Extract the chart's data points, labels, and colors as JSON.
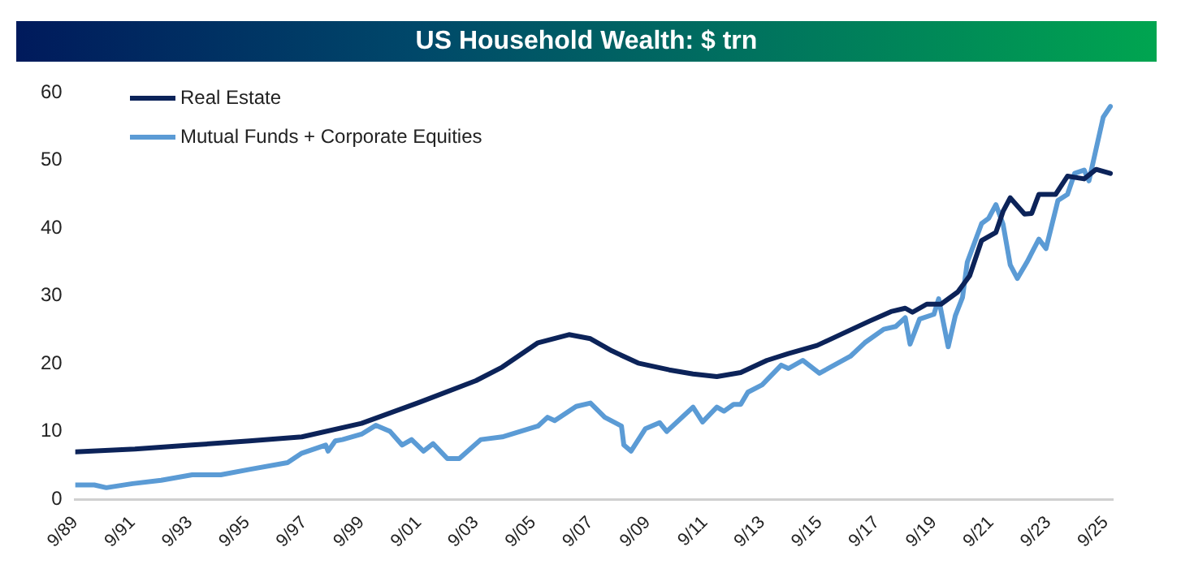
{
  "chart_data": {
    "type": "line",
    "title": "US Household Wealth: $ trn",
    "legend": "top left",
    "marker": "none",
    "xlim": [
      "1989-09",
      "2025-12"
    ],
    "ylim": [
      0,
      60
    ],
    "yticks": [
      0,
      10,
      20,
      30,
      40,
      50,
      60
    ],
    "xticks": [
      {
        "value": "1989-09",
        "label": "9/89"
      },
      {
        "value": "1991-09",
        "label": "9/91"
      },
      {
        "value": "1993-09",
        "label": "9/93"
      },
      {
        "value": "1995-09",
        "label": "9/95"
      },
      {
        "value": "1997-09",
        "label": "9/97"
      },
      {
        "value": "1999-09",
        "label": "9/99"
      },
      {
        "value": "2001-09",
        "label": "9/01"
      },
      {
        "value": "2003-09",
        "label": "9/03"
      },
      {
        "value": "2005-09",
        "label": "9/05"
      },
      {
        "value": "2007-09",
        "label": "9/07"
      },
      {
        "value": "2009-09",
        "label": "9/09"
      },
      {
        "value": "2011-09",
        "label": "9/11"
      },
      {
        "value": "2013-09",
        "label": "9/13"
      },
      {
        "value": "2015-09",
        "label": "9/15"
      },
      {
        "value": "2017-09",
        "label": "9/17"
      },
      {
        "value": "2019-09",
        "label": "9/19"
      },
      {
        "value": "2021-09",
        "label": "9/21"
      },
      {
        "value": "2023-09",
        "label": "9/23"
      },
      {
        "value": "2025-09",
        "label": "9/25"
      }
    ],
    "series": [
      {
        "name": "Real Estate",
        "color": "#0c2359",
        "x": [
          "1989-09",
          "1991-10",
          "1993-10",
          "1995-10",
          "1997-08",
          "1999-09",
          "2001-10",
          "2003-09",
          "2004-08",
          "2005-11",
          "2006-12",
          "2007-09",
          "2008-06",
          "2009-05",
          "2010-06",
          "2011-04",
          "2012-02",
          "2012-12",
          "2013-11",
          "2014-08",
          "2015-08",
          "2016-07",
          "2017-06",
          "2018-03",
          "2018-09",
          "2018-12",
          "2019-06",
          "2019-12",
          "2020-07",
          "2020-12",
          "2021-05",
          "2021-11",
          "2022-02",
          "2022-05",
          "2022-11",
          "2023-02",
          "2023-05",
          "2023-12",
          "2024-05",
          "2024-12",
          "2025-05",
          "2025-11"
        ],
        "values": [
          7.0,
          7.4,
          8.0,
          8.6,
          9.2,
          11.2,
          14.4,
          17.5,
          19.5,
          23.1,
          24.3,
          23.7,
          21.9,
          20.1,
          19.1,
          18.5,
          18.1,
          18.7,
          20.5,
          21.5,
          22.7,
          24.5,
          26.3,
          27.7,
          28.2,
          27.6,
          28.8,
          28.8,
          30.6,
          33.0,
          38.2,
          39.4,
          42.5,
          44.5,
          42.1,
          42.2,
          45.0,
          45.0,
          47.7,
          47.3,
          48.7,
          48.1
        ]
      },
      {
        "name": "Mutual Funds + Corporate Equities",
        "color": "#5b9bd5",
        "x": [
          "1989-09",
          "1990-05",
          "1990-10",
          "1991-09",
          "1992-09",
          "1993-10",
          "1994-10",
          "1995-10",
          "1997-02",
          "1997-08",
          "1998-06",
          "1998-07",
          "1998-10",
          "1999-01",
          "1999-09",
          "2000-03",
          "2000-09",
          "2001-02",
          "2001-06",
          "2001-11",
          "2002-03",
          "2002-09",
          "2003-02",
          "2003-11",
          "2004-08",
          "2005-11",
          "2006-03",
          "2006-06",
          "2007-03",
          "2007-09",
          "2008-03",
          "2008-10",
          "2008-11",
          "2009-02",
          "2009-08",
          "2010-02",
          "2010-05",
          "2011-04",
          "2011-08",
          "2012-02",
          "2012-05",
          "2012-09",
          "2012-12",
          "2013-03",
          "2013-09",
          "2014-05",
          "2014-08",
          "2015-02",
          "2015-09",
          "2016-10",
          "2017-04",
          "2017-12",
          "2018-05",
          "2018-09",
          "2018-11",
          "2019-03",
          "2019-09",
          "2019-11",
          "2020-03",
          "2020-06",
          "2020-09",
          "2020-11",
          "2021-05",
          "2021-08",
          "2021-11",
          "2022-02",
          "2022-05",
          "2022-08",
          "2022-12",
          "2023-05",
          "2023-08",
          "2024-01",
          "2024-05",
          "2024-08",
          "2024-12",
          "2025-02",
          "2025-08",
          "2025-11"
        ],
        "values": [
          2.1,
          2.1,
          1.7,
          2.3,
          2.8,
          3.6,
          3.6,
          4.4,
          5.4,
          6.8,
          8.0,
          7.1,
          8.6,
          8.8,
          9.6,
          10.9,
          10.0,
          8.0,
          8.8,
          7.1,
          8.2,
          6.0,
          6.0,
          8.8,
          9.2,
          10.8,
          12.1,
          11.6,
          13.7,
          14.2,
          12.1,
          10.8,
          8.0,
          7.1,
          10.4,
          11.3,
          10.0,
          13.6,
          11.4,
          13.6,
          13.0,
          14.0,
          14.0,
          15.8,
          16.9,
          19.8,
          19.3,
          20.5,
          18.6,
          21.1,
          23.1,
          25.1,
          25.5,
          26.8,
          22.9,
          26.6,
          27.3,
          29.6,
          22.5,
          27.1,
          29.8,
          35.0,
          40.7,
          41.5,
          43.5,
          40.6,
          34.6,
          32.6,
          35.0,
          38.4,
          37.0,
          44.1,
          45.0,
          48.1,
          48.6,
          47.0,
          56.4,
          58.0
        ]
      }
    ]
  }
}
